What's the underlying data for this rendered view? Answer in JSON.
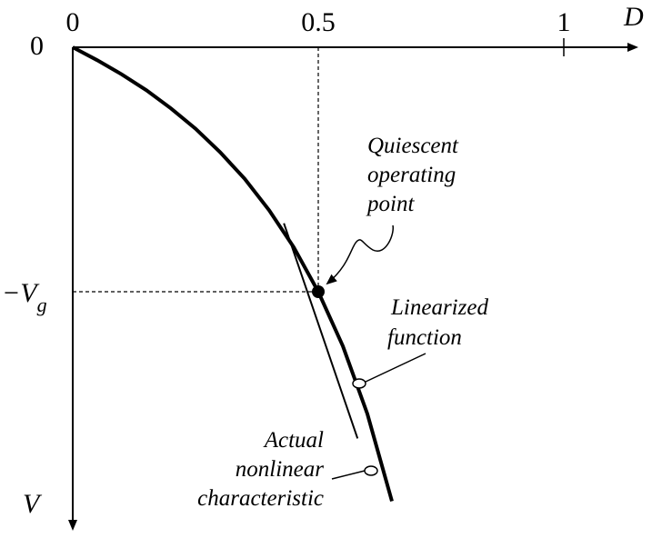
{
  "chart_data": {
    "type": "line",
    "title": "",
    "xlabel": "D",
    "ylabel": "V",
    "xlim": [
      0,
      1.2
    ],
    "x_ticks": [
      {
        "value": 0,
        "label": "0"
      },
      {
        "value": 0.5,
        "label": "0.5"
      },
      {
        "value": 1,
        "label": "1"
      }
    ],
    "y_ticks": [
      {
        "value": 0,
        "label": "0"
      },
      {
        "value": -1,
        "label": "−V",
        "subscript": "g"
      }
    ],
    "series": [
      {
        "kind": "nonlinear",
        "x": [
          0,
          0.05,
          0.1,
          0.15,
          0.2,
          0.25,
          0.3,
          0.35,
          0.4,
          0.45,
          0.5,
          0.55,
          0.6,
          0.65
        ],
        "y": [
          0,
          -0.053,
          -0.111,
          -0.176,
          -0.25,
          -0.333,
          -0.429,
          -0.538,
          -0.667,
          -0.818,
          -1.0,
          -1.222,
          -1.5,
          -1.857
        ]
      },
      {
        "kind": "linearized",
        "x": [
          0.43,
          0.58
        ],
        "y": [
          -0.72,
          -1.6
        ]
      }
    ],
    "operating_point": {
      "x": 0.5,
      "y": -1
    },
    "annotations": [
      {
        "id": "quiescent",
        "lines": [
          "Quiescent",
          "operating",
          "point"
        ]
      },
      {
        "id": "linearized",
        "lines": [
          "Linearized",
          "function"
        ]
      },
      {
        "id": "actual",
        "lines": [
          "Actual",
          "nonlinear",
          "characteristic"
        ]
      }
    ]
  }
}
